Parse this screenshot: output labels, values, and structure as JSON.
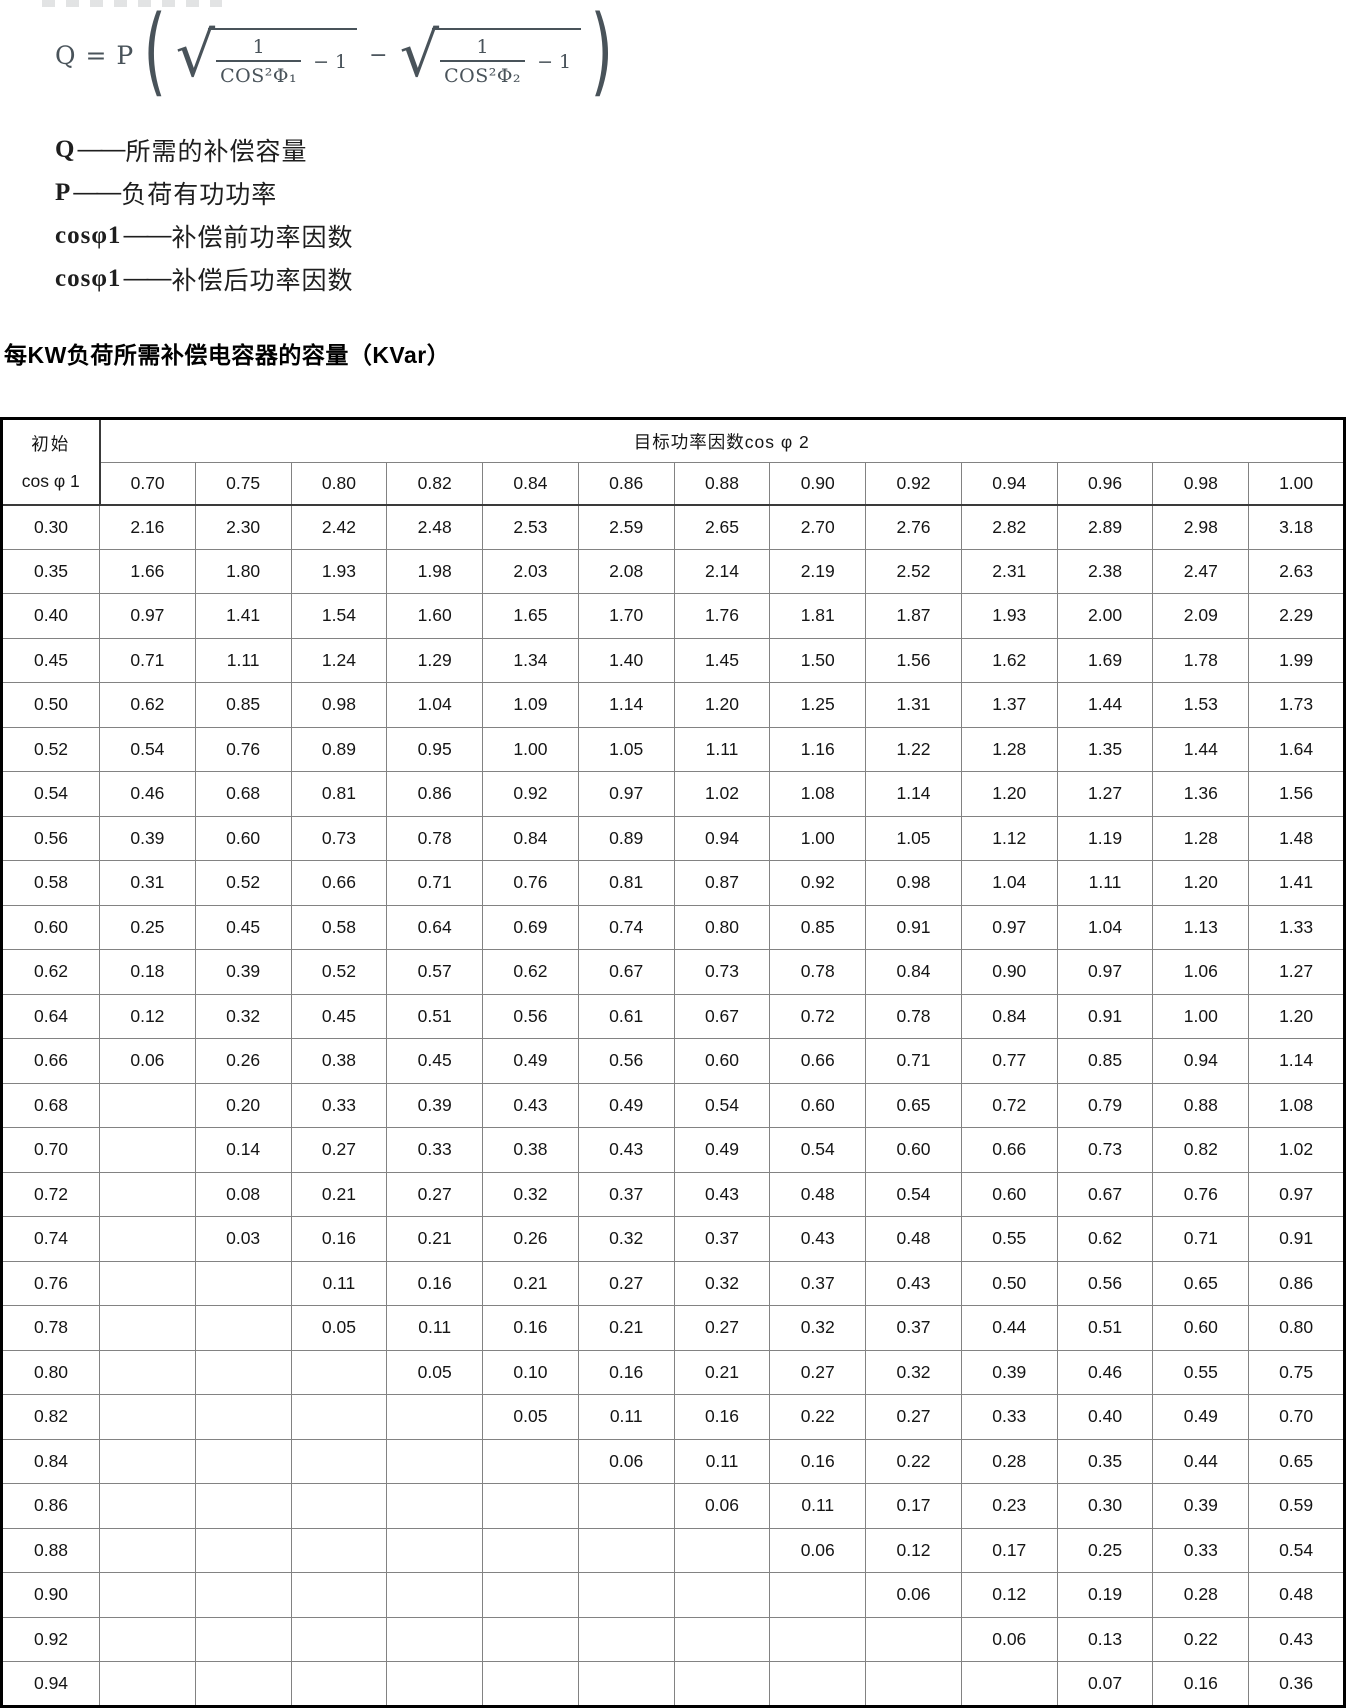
{
  "formula": {
    "lhs": "Q = P",
    "open_paren": "(",
    "close_paren": ")",
    "minus": "−",
    "rad1": {
      "num": "1",
      "den": "COS²Φ₁",
      "tail": "− 1"
    },
    "rad2": {
      "num": "1",
      "den": "COS²Φ₂",
      "tail": "− 1"
    }
  },
  "legend": [
    {
      "symbol": "Q",
      "dash": "——",
      "desc": "所需的补偿容量"
    },
    {
      "symbol": "P",
      "dash": "——",
      "desc": "负荷有功功率"
    },
    {
      "symbol": "cosφ1",
      "dash": "——",
      "desc": "补偿前功率因数"
    },
    {
      "symbol": "cosφ1",
      "dash": "——",
      "desc": "补偿后功率因数"
    }
  ],
  "table_title": "每KW负荷所需补偿电容器的容量（KVar）",
  "table": {
    "corner_top": "初始",
    "corner_bottom": "cos φ 1",
    "span_header": "目标功率因数cos φ 2",
    "columns": [
      "0.70",
      "0.75",
      "0.80",
      "0.82",
      "0.84",
      "0.86",
      "0.88",
      "0.90",
      "0.92",
      "0.94",
      "0.96",
      "0.98",
      "1.00"
    ],
    "rows": [
      {
        "label": "0.30",
        "values": [
          "2.16",
          "2.30",
          "2.42",
          "2.48",
          "2.53",
          "2.59",
          "2.65",
          "2.70",
          "2.76",
          "2.82",
          "2.89",
          "2.98",
          "3.18"
        ]
      },
      {
        "label": "0.35",
        "values": [
          "1.66",
          "1.80",
          "1.93",
          "1.98",
          "2.03",
          "2.08",
          "2.14",
          "2.19",
          "2.52",
          "2.31",
          "2.38",
          "2.47",
          "2.63"
        ]
      },
      {
        "label": "0.40",
        "values": [
          "0.97",
          "1.41",
          "1.54",
          "1.60",
          "1.65",
          "1.70",
          "1.76",
          "1.81",
          "1.87",
          "1.93",
          "2.00",
          "2.09",
          "2.29"
        ]
      },
      {
        "label": "0.45",
        "values": [
          "0.71",
          "1.11",
          "1.24",
          "1.29",
          "1.34",
          "1.40",
          "1.45",
          "1.50",
          "1.56",
          "1.62",
          "1.69",
          "1.78",
          "1.99"
        ]
      },
      {
        "label": "0.50",
        "values": [
          "0.62",
          "0.85",
          "0.98",
          "1.04",
          "1.09",
          "1.14",
          "1.20",
          "1.25",
          "1.31",
          "1.37",
          "1.44",
          "1.53",
          "1.73"
        ]
      },
      {
        "label": "0.52",
        "values": [
          "0.54",
          "0.76",
          "0.89",
          "0.95",
          "1.00",
          "1.05",
          "1.11",
          "1.16",
          "1.22",
          "1.28",
          "1.35",
          "1.44",
          "1.64"
        ]
      },
      {
        "label": "0.54",
        "values": [
          "0.46",
          "0.68",
          "0.81",
          "0.86",
          "0.92",
          "0.97",
          "1.02",
          "1.08",
          "1.14",
          "1.20",
          "1.27",
          "1.36",
          "1.56"
        ]
      },
      {
        "label": "0.56",
        "values": [
          "0.39",
          "0.60",
          "0.73",
          "0.78",
          "0.84",
          "0.89",
          "0.94",
          "1.00",
          "1.05",
          "1.12",
          "1.19",
          "1.28",
          "1.48"
        ]
      },
      {
        "label": "0.58",
        "values": [
          "0.31",
          "0.52",
          "0.66",
          "0.71",
          "0.76",
          "0.81",
          "0.87",
          "0.92",
          "0.98",
          "1.04",
          "1.11",
          "1.20",
          "1.41"
        ]
      },
      {
        "label": "0.60",
        "values": [
          "0.25",
          "0.45",
          "0.58",
          "0.64",
          "0.69",
          "0.74",
          "0.80",
          "0.85",
          "0.91",
          "0.97",
          "1.04",
          "1.13",
          "1.33"
        ]
      },
      {
        "label": "0.62",
        "values": [
          "0.18",
          "0.39",
          "0.52",
          "0.57",
          "0.62",
          "0.67",
          "0.73",
          "0.78",
          "0.84",
          "0.90",
          "0.97",
          "1.06",
          "1.27"
        ]
      },
      {
        "label": "0.64",
        "values": [
          "0.12",
          "0.32",
          "0.45",
          "0.51",
          "0.56",
          "0.61",
          "0.67",
          "0.72",
          "0.78",
          "0.84",
          "0.91",
          "1.00",
          "1.20"
        ]
      },
      {
        "label": "0.66",
        "values": [
          "0.06",
          "0.26",
          "0.38",
          "0.45",
          "0.49",
          "0.56",
          "0.60",
          "0.66",
          "0.71",
          "0.77",
          "0.85",
          "0.94",
          "1.14"
        ]
      },
      {
        "label": "0.68",
        "values": [
          "",
          "0.20",
          "0.33",
          "0.39",
          "0.43",
          "0.49",
          "0.54",
          "0.60",
          "0.65",
          "0.72",
          "0.79",
          "0.88",
          "1.08"
        ]
      },
      {
        "label": "0.70",
        "values": [
          "",
          "0.14",
          "0.27",
          "0.33",
          "0.38",
          "0.43",
          "0.49",
          "0.54",
          "0.60",
          "0.66",
          "0.73",
          "0.82",
          "1.02"
        ]
      },
      {
        "label": "0.72",
        "values": [
          "",
          "0.08",
          "0.21",
          "0.27",
          "0.32",
          "0.37",
          "0.43",
          "0.48",
          "0.54",
          "0.60",
          "0.67",
          "0.76",
          "0.97"
        ]
      },
      {
        "label": "0.74",
        "values": [
          "",
          "0.03",
          "0.16",
          "0.21",
          "0.26",
          "0.32",
          "0.37",
          "0.43",
          "0.48",
          "0.55",
          "0.62",
          "0.71",
          "0.91"
        ]
      },
      {
        "label": "0.76",
        "values": [
          "",
          "",
          "0.11",
          "0.16",
          "0.21",
          "0.27",
          "0.32",
          "0.37",
          "0.43",
          "0.50",
          "0.56",
          "0.65",
          "0.86"
        ]
      },
      {
        "label": "0.78",
        "values": [
          "",
          "",
          "0.05",
          "0.11",
          "0.16",
          "0.21",
          "0.27",
          "0.32",
          "0.37",
          "0.44",
          "0.51",
          "0.60",
          "0.80"
        ]
      },
      {
        "label": "0.80",
        "values": [
          "",
          "",
          "",
          "0.05",
          "0.10",
          "0.16",
          "0.21",
          "0.27",
          "0.32",
          "0.39",
          "0.46",
          "0.55",
          "0.75"
        ]
      },
      {
        "label": "0.82",
        "values": [
          "",
          "",
          "",
          "",
          "0.05",
          "0.11",
          "0.16",
          "0.22",
          "0.27",
          "0.33",
          "0.40",
          "0.49",
          "0.70"
        ]
      },
      {
        "label": "0.84",
        "values": [
          "",
          "",
          "",
          "",
          "",
          "0.06",
          "0.11",
          "0.16",
          "0.22",
          "0.28",
          "0.35",
          "0.44",
          "0.65"
        ]
      },
      {
        "label": "0.86",
        "values": [
          "",
          "",
          "",
          "",
          "",
          "",
          "0.06",
          "0.11",
          "0.17",
          "0.23",
          "0.30",
          "0.39",
          "0.59"
        ]
      },
      {
        "label": "0.88",
        "values": [
          "",
          "",
          "",
          "",
          "",
          "",
          "",
          "0.06",
          "0.12",
          "0.17",
          "0.25",
          "0.33",
          "0.54"
        ]
      },
      {
        "label": "0.90",
        "values": [
          "",
          "",
          "",
          "",
          "",
          "",
          "",
          "",
          "0.06",
          "0.12",
          "0.19",
          "0.28",
          "0.48"
        ]
      },
      {
        "label": "0.92",
        "values": [
          "",
          "",
          "",
          "",
          "",
          "",
          "",
          "",
          "",
          "0.06",
          "0.13",
          "0.22",
          "0.43"
        ]
      },
      {
        "label": "0.94",
        "values": [
          "",
          "",
          "",
          "",
          "",
          "",
          "",
          "",
          "",
          "",
          "0.07",
          "0.16",
          "0.36"
        ]
      }
    ]
  }
}
